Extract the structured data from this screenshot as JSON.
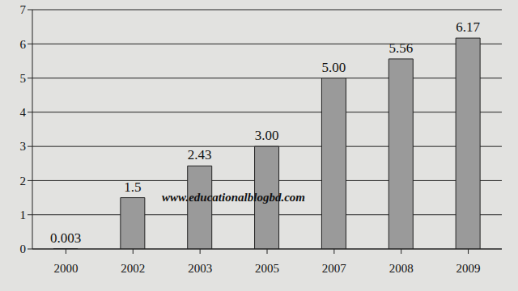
{
  "chart_data": {
    "type": "bar",
    "categories": [
      "2000",
      "2002",
      "2003",
      "2005",
      "2007",
      "2008",
      "2009"
    ],
    "values": [
      0.003,
      1.5,
      2.43,
      3.0,
      5.0,
      5.56,
      6.17
    ],
    "value_labels": [
      "0.003",
      "1.5",
      "2.43",
      "3.00",
      "5.00",
      "5.56",
      "6.17"
    ],
    "data_labels": true,
    "color": "#9a9a9a",
    "ylim": [
      0,
      7
    ],
    "yticks": [
      0,
      1,
      2,
      3,
      4,
      5,
      6,
      7
    ],
    "grid": true,
    "annotations": [
      "www.educationalblogbd.com"
    ]
  }
}
